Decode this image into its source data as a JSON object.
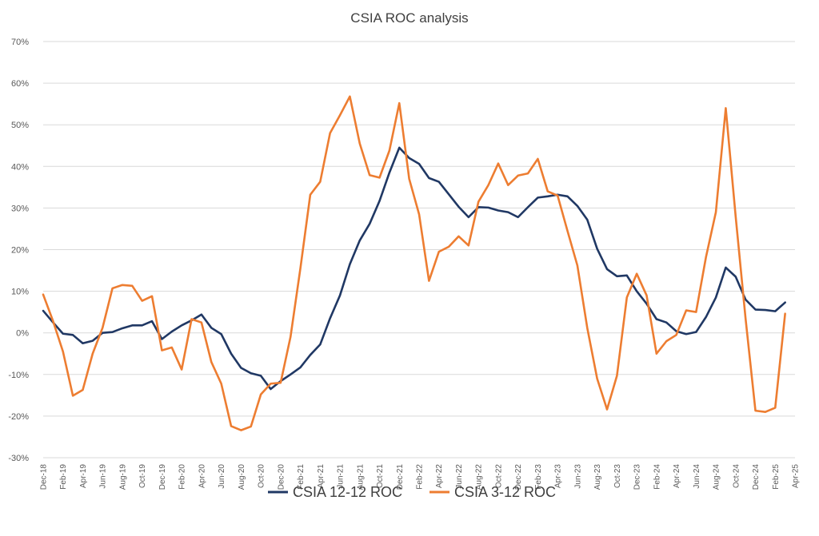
{
  "chart_data": {
    "type": "line",
    "title": "CSIA ROC analysis",
    "xlabel": "",
    "ylabel": "",
    "ylim": [
      -0.3,
      0.7
    ],
    "yticks": [
      "70%",
      "60%",
      "50%",
      "40%",
      "30%",
      "20%",
      "10%",
      "0%",
      "-10%",
      "-20%",
      "-30%"
    ],
    "ytick_values": [
      0.7,
      0.6,
      0.5,
      0.4,
      0.3,
      0.2,
      0.1,
      0.0,
      -0.1,
      -0.2,
      -0.3
    ],
    "grid": "horizontal",
    "legend_position": "bottom",
    "x": [
      "Dec-18",
      "Jan-19",
      "Feb-19",
      "Mar-19",
      "Apr-19",
      "May-19",
      "Jun-19",
      "Jul-19",
      "Aug-19",
      "Sep-19",
      "Oct-19",
      "Nov-19",
      "Dec-19",
      "Jan-20",
      "Feb-20",
      "Mar-20",
      "Apr-20",
      "May-20",
      "Jun-20",
      "Jul-20",
      "Aug-20",
      "Sep-20",
      "Oct-20",
      "Nov-20",
      "Dec-20",
      "Jan-21",
      "Feb-21",
      "Mar-21",
      "Apr-21",
      "May-21",
      "Jun-21",
      "Jul-21",
      "Aug-21",
      "Sep-21",
      "Oct-21",
      "Nov-21",
      "Dec-21",
      "Jan-22",
      "Feb-22",
      "Mar-22",
      "Apr-22",
      "May-22",
      "Jun-22",
      "Jul-22",
      "Aug-22",
      "Sep-22",
      "Oct-22",
      "Nov-22",
      "Dec-22",
      "Jan-23",
      "Feb-23",
      "Mar-23",
      "Apr-23",
      "May-23",
      "Jun-23",
      "Jul-23",
      "Aug-23",
      "Sep-23",
      "Oct-23",
      "Nov-23",
      "Dec-23",
      "Jan-24",
      "Feb-24",
      "Mar-24",
      "Apr-24",
      "May-24",
      "Jun-24",
      "Jul-24",
      "Aug-24",
      "Sep-24",
      "Oct-24",
      "Nov-24",
      "Dec-24",
      "Jan-25",
      "Feb-25",
      "Mar-25",
      "Apr-25"
    ],
    "x_tick_labels": [
      "Dec-18",
      "Feb-19",
      "Apr-19",
      "Jun-19",
      "Aug-19",
      "Oct-19",
      "Dec-19",
      "Feb-20",
      "Apr-20",
      "Jun-20",
      "Aug-20",
      "Oct-20",
      "Dec-20",
      "Feb-21",
      "Apr-21",
      "Jun-21",
      "Aug-21",
      "Oct-21",
      "Dec-21",
      "Feb-22",
      "Apr-22",
      "Jun-22",
      "Aug-22",
      "Oct-22",
      "Dec-22",
      "Feb-23",
      "Apr-23",
      "Jun-23",
      "Aug-23",
      "Oct-23",
      "Dec-23",
      "Feb-24",
      "Apr-24",
      "Jun-24",
      "Aug-24",
      "Oct-24",
      "Dec-24",
      "Feb-25",
      "Apr-25"
    ],
    "series": [
      {
        "name": "CSIA 12-12 ROC",
        "color": "#203864",
        "values": [
          0.053,
          0.025,
          -0.002,
          -0.005,
          -0.025,
          -0.019,
          0.0,
          0.002,
          0.011,
          0.018,
          0.018,
          0.028,
          -0.015,
          0.003,
          0.018,
          0.03,
          0.044,
          0.012,
          -0.003,
          -0.05,
          -0.084,
          -0.097,
          -0.103,
          -0.135,
          -0.116,
          -0.1,
          -0.083,
          -0.053,
          -0.028,
          0.035,
          0.09,
          0.165,
          0.222,
          0.262,
          0.317,
          0.385,
          0.445,
          0.42,
          0.406,
          0.372,
          0.363,
          0.333,
          0.303,
          0.278,
          0.302,
          0.301,
          0.294,
          0.29,
          0.278,
          0.302,
          0.325,
          0.328,
          0.332,
          0.328,
          0.305,
          0.272,
          0.202,
          0.153,
          0.136,
          0.138,
          0.1,
          0.07,
          0.033,
          0.025,
          0.004,
          -0.003,
          0.002,
          0.038,
          0.085,
          0.157,
          0.135,
          0.08,
          0.056,
          0.055,
          0.052,
          0.073,
          null
        ]
      },
      {
        "name": "CSIA 3-12 ROC",
        "color": "#ED7D31",
        "values": [
          0.092,
          0.028,
          -0.045,
          -0.151,
          -0.137,
          -0.05,
          0.012,
          0.107,
          0.115,
          0.113,
          0.077,
          0.088,
          -0.042,
          -0.035,
          -0.088,
          0.033,
          0.025,
          -0.07,
          -0.122,
          -0.224,
          -0.234,
          -0.225,
          -0.148,
          -0.122,
          -0.12,
          -0.01,
          0.155,
          0.332,
          0.363,
          0.48,
          0.523,
          0.568,
          0.455,
          0.379,
          0.373,
          0.438,
          0.552,
          0.37,
          0.285,
          0.125,
          0.195,
          0.207,
          0.232,
          0.21,
          0.315,
          0.355,
          0.407,
          0.355,
          0.378,
          0.383,
          0.418,
          0.34,
          0.33,
          0.245,
          0.162,
          0.012,
          -0.11,
          -0.184,
          -0.103,
          0.085,
          0.142,
          0.09,
          -0.05,
          -0.02,
          -0.005,
          0.054,
          0.05,
          0.182,
          0.29,
          0.54,
          0.28,
          0.035,
          -0.187,
          -0.19,
          -0.18,
          0.046,
          null
        ]
      }
    ]
  }
}
